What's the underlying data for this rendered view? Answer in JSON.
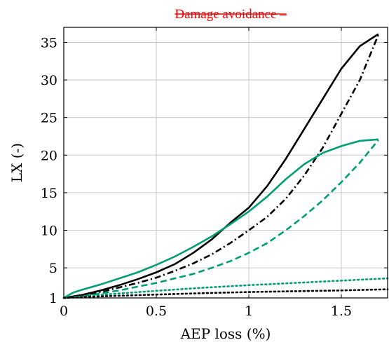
{
  "chart_data": {
    "type": "line",
    "title": "Damage avoidance –",
    "xlabel": "AEP loss (%)",
    "ylabel": "LX (-)",
    "xlim": [
      0,
      1.75
    ],
    "ylim": [
      1,
      37
    ],
    "xticks": [
      0,
      0.5,
      1,
      1.5
    ],
    "xtick_labels": [
      "0",
      "0.5",
      "1",
      "1.5"
    ],
    "yticks": [
      1,
      5,
      10,
      15,
      20,
      25,
      30,
      35
    ],
    "ytick_labels": [
      "1",
      "5",
      "10",
      "15",
      "20",
      "25",
      "30",
      "35"
    ],
    "grid": true,
    "legend": "none",
    "colors": {
      "black": "#000000",
      "green": "#009e73",
      "title": "#ff0000",
      "grid": "#bdbdbd"
    },
    "series": [
      {
        "color": "#000000",
        "dash": "solid",
        "x": [
          0,
          0.1,
          0.2,
          0.3,
          0.4,
          0.5,
          0.6,
          0.7,
          0.8,
          0.9,
          1.0,
          1.1,
          1.2,
          1.3,
          1.4,
          1.5,
          1.6,
          1.65,
          1.7
        ],
        "y": [
          1,
          1.4,
          2.0,
          2.7,
          3.5,
          4.4,
          5.5,
          7.0,
          8.8,
          11.0,
          13.0,
          15.9,
          19.5,
          23.5,
          27.5,
          31.5,
          34.5,
          35.3,
          36.1
        ]
      },
      {
        "color": "#000000",
        "dash": "dashdot",
        "x": [
          0,
          0.1,
          0.2,
          0.3,
          0.4,
          0.5,
          0.6,
          0.7,
          0.8,
          0.9,
          1.0,
          1.1,
          1.2,
          1.3,
          1.4,
          1.5,
          1.6,
          1.7
        ],
        "y": [
          1,
          1.3,
          1.8,
          2.4,
          3.0,
          3.7,
          4.6,
          5.6,
          6.8,
          8.3,
          10.0,
          11.8,
          14.2,
          17.3,
          21.0,
          25.5,
          30.0,
          36.0
        ]
      },
      {
        "color": "#009e73",
        "dash": "solid",
        "x": [
          0,
          0.05,
          0.1,
          0.2,
          0.3,
          0.4,
          0.5,
          0.6,
          0.7,
          0.8,
          0.9,
          1.0,
          1.1,
          1.2,
          1.3,
          1.4,
          1.5,
          1.6,
          1.7
        ],
        "y": [
          1,
          1.7,
          2.1,
          2.8,
          3.6,
          4.4,
          5.4,
          6.5,
          7.8,
          9.2,
          10.8,
          12.5,
          14.5,
          16.8,
          18.8,
          20.3,
          21.2,
          21.9,
          22.1
        ]
      },
      {
        "color": "#009e73",
        "dash": "dashed",
        "x": [
          0,
          0.1,
          0.2,
          0.3,
          0.4,
          0.5,
          0.6,
          0.7,
          0.8,
          0.9,
          1.0,
          1.1,
          1.2,
          1.3,
          1.4,
          1.5,
          1.6,
          1.7
        ],
        "y": [
          1,
          1.2,
          1.6,
          2.0,
          2.5,
          3.0,
          3.6,
          4.2,
          5.0,
          5.9,
          7.0,
          8.3,
          10.0,
          11.9,
          14.0,
          16.4,
          19.0,
          22.0
        ]
      },
      {
        "color": "#009e73",
        "dash": "dotted",
        "x": [
          0,
          0.25,
          0.5,
          0.75,
          1.0,
          1.25,
          1.5,
          1.75
        ],
        "y": [
          1,
          1.5,
          1.95,
          2.35,
          2.7,
          3.0,
          3.3,
          3.6
        ]
      },
      {
        "color": "#000000",
        "dash": "dotted",
        "x": [
          0,
          0.25,
          0.5,
          0.75,
          1.0,
          1.25,
          1.5,
          1.75
        ],
        "y": [
          1,
          1.25,
          1.45,
          1.63,
          1.78,
          1.9,
          2.0,
          2.15
        ]
      }
    ]
  }
}
